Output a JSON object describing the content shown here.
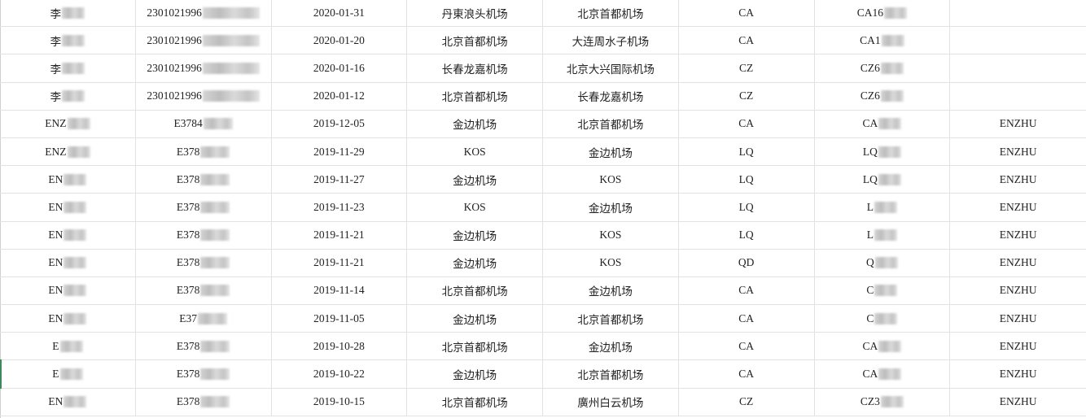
{
  "sheet": {
    "rows": [
      {
        "name": "李",
        "id": "2301021996",
        "date": "2020-01-31",
        "from": "丹東浪头机场",
        "to": "北京首都机场",
        "airline": "CA",
        "flight": "CA16",
        "passenger": ""
      },
      {
        "name": "李",
        "id": "2301021996",
        "date": "2020-01-20",
        "from": "北京首都机场",
        "to": "大连周水子机场",
        "airline": "CA",
        "flight": "CA1",
        "passenger": ""
      },
      {
        "name": "李",
        "id": "2301021996",
        "date": "2020-01-16",
        "from": "长春龙嘉机场",
        "to": "北京大兴国际机场",
        "airline": "CZ",
        "flight": "CZ6",
        "passenger": ""
      },
      {
        "name": "李",
        "id": "2301021996",
        "date": "2020-01-12",
        "from": "北京首都机场",
        "to": "长春龙嘉机场",
        "airline": "CZ",
        "flight": "CZ6",
        "passenger": ""
      },
      {
        "name": "ENZ",
        "id": "E3784",
        "date": "2019-12-05",
        "from": "金边机场",
        "to": "北京首都机场",
        "airline": "CA",
        "flight": "CA",
        "passenger": "ENZHU"
      },
      {
        "name": "ENZ",
        "id": "E378",
        "date": "2019-11-29",
        "from": "KOS",
        "to": "金边机场",
        "airline": "LQ",
        "flight": "LQ",
        "passenger": "ENZHU"
      },
      {
        "name": "EN",
        "id": "E378",
        "date": "2019-11-27",
        "from": "金边机场",
        "to": "KOS",
        "airline": "LQ",
        "flight": "LQ",
        "passenger": "ENZHU"
      },
      {
        "name": "EN",
        "id": "E378",
        "date": "2019-11-23",
        "from": "KOS",
        "to": "金边机场",
        "airline": "LQ",
        "flight": "L",
        "passenger": "ENZHU"
      },
      {
        "name": "EN",
        "id": "E378",
        "date": "2019-11-21",
        "from": "金边机场",
        "to": "KOS",
        "airline": "LQ",
        "flight": "L",
        "passenger": "ENZHU"
      },
      {
        "name": "EN",
        "id": "E378",
        "date": "2019-11-21",
        "from": "金边机场",
        "to": "KOS",
        "airline": "QD",
        "flight": "Q",
        "passenger": "ENZHU"
      },
      {
        "name": "EN",
        "id": "E378",
        "date": "2019-11-14",
        "from": "北京首都机场",
        "to": "金边机场",
        "airline": "CA",
        "flight": "C",
        "passenger": "ENZHU"
      },
      {
        "name": "EN",
        "id": "E37",
        "date": "2019-11-05",
        "from": "金边机场",
        "to": "北京首都机场",
        "airline": "CA",
        "flight": "C",
        "passenger": "ENZHU"
      },
      {
        "name": "E",
        "id": "E378",
        "date": "2019-10-28",
        "from": "北京首都机场",
        "to": "金边机场",
        "airline": "CA",
        "flight": "CA",
        "passenger": "ENZHU"
      },
      {
        "name": "E",
        "id": "E378",
        "date": "2019-10-22",
        "from": "金边机场",
        "to": "北京首都机场",
        "airline": "CA",
        "flight": "CA",
        "passenger": "ENZHU"
      },
      {
        "name": "EN",
        "id": "E378",
        "date": "2019-10-15",
        "from": "北京首都机场",
        "to": "廣州白云机场",
        "airline": "CZ",
        "flight": "CZ3",
        "passenger": "ENZHU"
      }
    ]
  },
  "colors": {
    "grid": "#e2e2e2",
    "selection": "#3a8a5c"
  }
}
